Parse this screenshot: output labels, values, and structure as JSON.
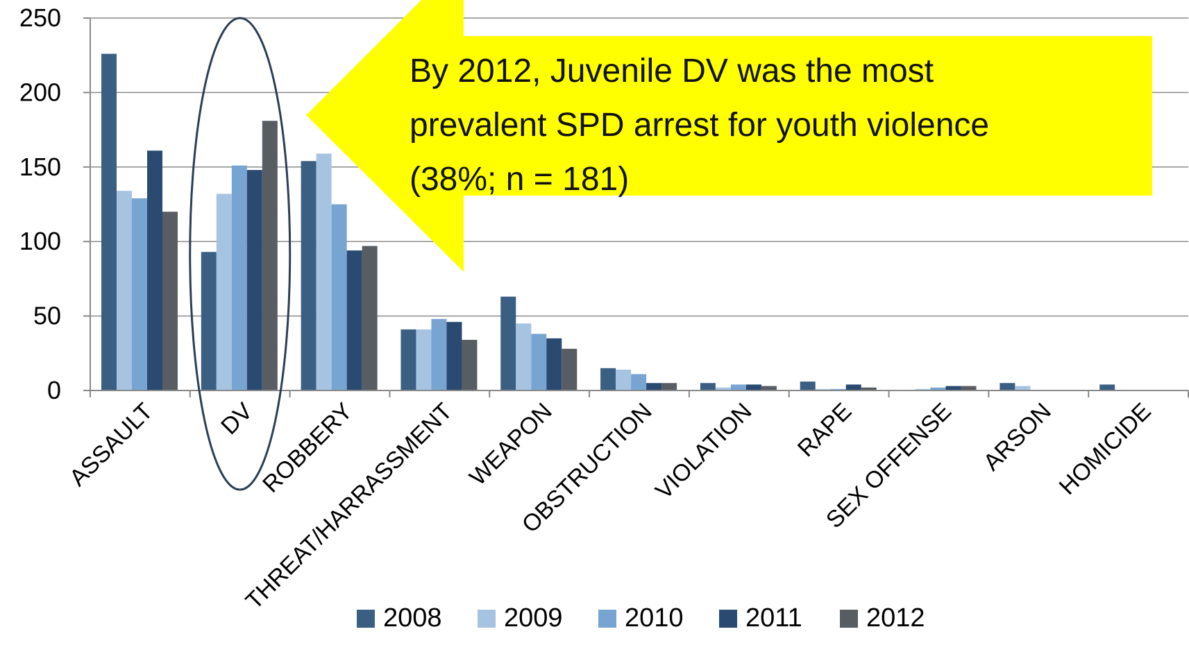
{
  "chart_data": {
    "type": "bar",
    "categories": [
      "ASSAULT",
      "DV",
      "ROBBERY",
      "THREAT/HARRASSMENT",
      "WEAPON",
      "OBSTRUCTION",
      "VIOLATION",
      "RAPE",
      "SEX OFFENSE",
      "ARSON",
      "HOMICIDE"
    ],
    "series": [
      {
        "name": "2008",
        "color": "#3b5f82",
        "values": [
          226,
          93,
          154,
          41,
          63,
          15,
          5,
          6,
          0,
          5,
          4
        ]
      },
      {
        "name": "2009",
        "color": "#a6c3e2",
        "values": [
          134,
          132,
          159,
          41,
          45,
          14,
          2,
          1,
          1,
          3,
          0
        ]
      },
      {
        "name": "2010",
        "color": "#78a4d2",
        "values": [
          129,
          151,
          125,
          48,
          38,
          11,
          4,
          1,
          2,
          0,
          0
        ]
      },
      {
        "name": "2011",
        "color": "#2a4a72",
        "values": [
          161,
          148,
          94,
          46,
          35,
          5,
          4,
          4,
          3,
          0,
          0
        ]
      },
      {
        "name": "2012",
        "color": "#585d63",
        "values": [
          120,
          181,
          97,
          34,
          28,
          5,
          3,
          2,
          3,
          0,
          0
        ]
      }
    ],
    "yticks": [
      "0",
      "50",
      "100",
      "150",
      "200",
      "250"
    ],
    "ylim": [
      0,
      250
    ],
    "grid": true,
    "legend_position": "bottom",
    "highlighted_category": "DV",
    "annotation": {
      "lines": [
        "By 2012, Juvenile DV was the most",
        "prevalent SPD arrest for youth violence",
        "(38%; n = 181)"
      ],
      "color": "#ffff00"
    }
  }
}
